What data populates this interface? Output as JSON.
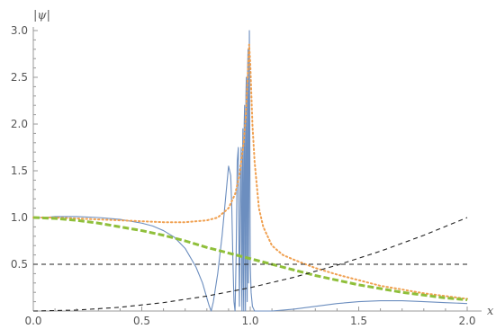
{
  "chart_data": {
    "type": "line",
    "title": "",
    "xlabel": "x",
    "ylabel": "|ψ|",
    "xlim": [
      0,
      2.0
    ],
    "ylim": [
      0,
      3.0
    ],
    "x_ticks": [
      "0.0",
      "0.5",
      "1.0",
      "1.5",
      "2.0"
    ],
    "y_ticks": [
      "0.5",
      "1.0",
      "1.5",
      "2.0",
      "2.5",
      "3.0"
    ],
    "x_tick_values": [
      0,
      0.5,
      1.0,
      1.5,
      2.0
    ],
    "y_tick_values": [
      0.5,
      1.0,
      1.5,
      2.0,
      2.5,
      3.0
    ],
    "grid": false,
    "series": [
      {
        "style": "solid",
        "color": "#6c8ebf",
        "points": [
          [
            0,
            1.0
          ],
          [
            0.05,
            1.0
          ],
          [
            0.1,
            1.01
          ],
          [
            0.2,
            1.01
          ],
          [
            0.3,
            1.0
          ],
          [
            0.4,
            0.98
          ],
          [
            0.5,
            0.94
          ],
          [
            0.55,
            0.91
          ],
          [
            0.6,
            0.86
          ],
          [
            0.65,
            0.79
          ],
          [
            0.7,
            0.67
          ],
          [
            0.75,
            0.47
          ],
          [
            0.78,
            0.3
          ],
          [
            0.8,
            0.14
          ],
          [
            0.81,
            0.06
          ],
          [
            0.82,
            0.0
          ],
          [
            0.83,
            0.1
          ],
          [
            0.85,
            0.4
          ],
          [
            0.87,
            0.8
          ],
          [
            0.89,
            1.3
          ],
          [
            0.9,
            1.55
          ],
          [
            0.91,
            1.45
          ],
          [
            0.915,
            1.1
          ],
          [
            0.92,
            0.55
          ],
          [
            0.925,
            0.1
          ],
          [
            0.93,
            0.0
          ],
          [
            0.935,
            0.6
          ],
          [
            0.94,
            1.6
          ],
          [
            0.945,
            1.75
          ],
          [
            0.948,
            0.6
          ],
          [
            0.95,
            0.05
          ],
          [
            0.955,
            1.4
          ],
          [
            0.958,
            1.75
          ],
          [
            0.96,
            0.3
          ],
          [
            0.962,
            0.0
          ],
          [
            0.964,
            1.5
          ],
          [
            0.966,
            1.95
          ],
          [
            0.968,
            0.4
          ],
          [
            0.97,
            0.0
          ],
          [
            0.972,
            2.0
          ],
          [
            0.974,
            2.2
          ],
          [
            0.976,
            0.6
          ],
          [
            0.978,
            0.0
          ],
          [
            0.98,
            2.3
          ],
          [
            0.982,
            2.5
          ],
          [
            0.984,
            0.5
          ],
          [
            0.986,
            0.1
          ],
          [
            0.988,
            2.6
          ],
          [
            0.99,
            2.8
          ],
          [
            0.992,
            0.3
          ],
          [
            0.994,
            1.5
          ],
          [
            0.996,
            3.0
          ],
          [
            0.998,
            1.8
          ],
          [
            1.0,
            0.5
          ],
          [
            1.004,
            0.2
          ],
          [
            1.01,
            0.05
          ],
          [
            1.02,
            0.0
          ],
          [
            1.1,
            0.0
          ],
          [
            1.2,
            0.02
          ],
          [
            1.3,
            0.05
          ],
          [
            1.4,
            0.08
          ],
          [
            1.5,
            0.1
          ],
          [
            1.6,
            0.11
          ],
          [
            1.7,
            0.11
          ],
          [
            1.8,
            0.1
          ],
          [
            1.9,
            0.09
          ],
          [
            2.0,
            0.08
          ]
        ]
      },
      {
        "style": "dotted",
        "color": "#f0a050",
        "points": [
          [
            0,
            1.0
          ],
          [
            0.1,
            1.0
          ],
          [
            0.2,
            0.99
          ],
          [
            0.3,
            0.98
          ],
          [
            0.4,
            0.97
          ],
          [
            0.5,
            0.96
          ],
          [
            0.6,
            0.95
          ],
          [
            0.7,
            0.95
          ],
          [
            0.8,
            0.97
          ],
          [
            0.85,
            1.0
          ],
          [
            0.9,
            1.1
          ],
          [
            0.93,
            1.25
          ],
          [
            0.95,
            1.45
          ],
          [
            0.97,
            1.8
          ],
          [
            0.98,
            2.1
          ],
          [
            0.99,
            2.6
          ],
          [
            0.995,
            2.85
          ],
          [
            1.0,
            2.65
          ],
          [
            1.01,
            2.0
          ],
          [
            1.02,
            1.6
          ],
          [
            1.04,
            1.1
          ],
          [
            1.06,
            0.9
          ],
          [
            1.1,
            0.7
          ],
          [
            1.15,
            0.6
          ],
          [
            1.2,
            0.55
          ],
          [
            1.3,
            0.46
          ],
          [
            1.4,
            0.39
          ],
          [
            1.5,
            0.33
          ],
          [
            1.6,
            0.27
          ],
          [
            1.7,
            0.23
          ],
          [
            1.8,
            0.19
          ],
          [
            1.9,
            0.16
          ],
          [
            2.0,
            0.13
          ]
        ]
      },
      {
        "style": "dashed-thick",
        "color": "#8fbf3a",
        "points": [
          [
            0,
            1.0
          ],
          [
            0.1,
            0.99
          ],
          [
            0.2,
            0.97
          ],
          [
            0.3,
            0.94
          ],
          [
            0.4,
            0.9
          ],
          [
            0.5,
            0.86
          ],
          [
            0.6,
            0.81
          ],
          [
            0.7,
            0.75
          ],
          [
            0.8,
            0.68
          ],
          [
            0.9,
            0.62
          ],
          [
            1.0,
            0.56
          ],
          [
            1.1,
            0.5
          ],
          [
            1.2,
            0.44
          ],
          [
            1.3,
            0.38
          ],
          [
            1.4,
            0.33
          ],
          [
            1.5,
            0.28
          ],
          [
            1.6,
            0.24
          ],
          [
            1.7,
            0.2
          ],
          [
            1.8,
            0.17
          ],
          [
            1.9,
            0.14
          ],
          [
            2.0,
            0.12
          ]
        ]
      },
      {
        "style": "dashed",
        "color": "#222222",
        "points": [
          [
            0,
            0.5
          ],
          [
            2.0,
            0.5
          ]
        ]
      },
      {
        "style": "dashed",
        "color": "#222222",
        "points": [
          [
            0,
            0.0
          ],
          [
            0.2,
            0.01
          ],
          [
            0.4,
            0.04
          ],
          [
            0.6,
            0.09
          ],
          [
            0.8,
            0.16
          ],
          [
            1.0,
            0.25
          ],
          [
            1.2,
            0.36
          ],
          [
            1.4,
            0.49
          ],
          [
            1.6,
            0.64
          ],
          [
            1.8,
            0.81
          ],
          [
            2.0,
            1.0
          ]
        ]
      }
    ]
  }
}
